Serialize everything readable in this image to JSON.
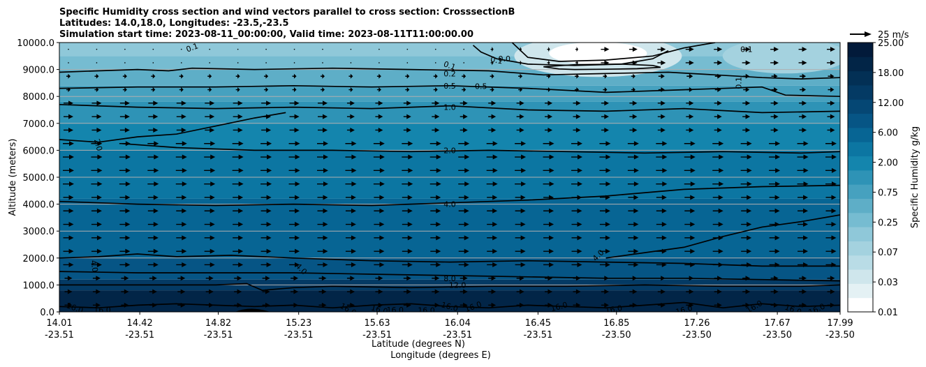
{
  "chart_data": {
    "type": "contour",
    "title_lines": [
      "Specific Humidity cross section and wind vectors parallel to cross section: CrosssectionB",
      "Latitudes: 14.0,18.0, Longitudes: -23.5,-23.5",
      "Simulation start time: 2023-08-11_00:00:00, Valid time: 2023-08-11T11:00:00.00"
    ],
    "ylabel": "Altitude (meters)",
    "xlabel_lines": [
      "Latitude (degrees N)",
      "Longitude (degrees E)"
    ],
    "ylim": [
      0,
      10000
    ],
    "yticks": [
      "0.0",
      "1000.0",
      "2000.0",
      "3000.0",
      "4000.0",
      "5000.0",
      "6000.0",
      "7000.0",
      "8000.0",
      "9000.0",
      "10000.0"
    ],
    "xticks": [
      {
        "lat": "14.01",
        "lon": "-23.51"
      },
      {
        "lat": "14.42",
        "lon": "-23.51"
      },
      {
        "lat": "14.82",
        "lon": "-23.51"
      },
      {
        "lat": "15.23",
        "lon": "-23.51"
      },
      {
        "lat": "15.63",
        "lon": "-23.51"
      },
      {
        "lat": "16.04",
        "lon": "-23.51"
      },
      {
        "lat": "16.45",
        "lon": "-23.51"
      },
      {
        "lat": "16.85",
        "lon": "-23.50"
      },
      {
        "lat": "17.26",
        "lon": "-23.50"
      },
      {
        "lat": "17.67",
        "lon": "-23.50"
      },
      {
        "lat": "17.99",
        "lon": "-23.50"
      }
    ],
    "colorbar": {
      "label": "Specific Humidity g/kg",
      "ticks": [
        "0.01",
        "0.03",
        "0.07",
        "0.25",
        "0.75",
        "2.00",
        "6.00",
        "12.00",
        "18.00",
        "25.00"
      ],
      "levels": [
        "0.01",
        "0.02",
        "0.03",
        "0.05",
        "0.07",
        "0.1",
        "0.25",
        "0.5",
        "0.75",
        "1.0",
        "2.00",
        "4.0",
        "6.00",
        "8.0",
        "12.00",
        "16.0",
        "18.00",
        "20.0",
        "25.00"
      ],
      "colors": [
        "#ffffff",
        "#e4f1f4",
        "#cfe6ec",
        "#b9dce6",
        "#a4d2df",
        "#8fc8d9",
        "#76bcd1",
        "#5eaec7",
        "#46a1bf",
        "#2e93b6",
        "#1485ad",
        "#0c76a2",
        "#076594",
        "#065585",
        "#054774",
        "#043a64",
        "#033055",
        "#022547",
        "#021a3a"
      ]
    },
    "wind_legend": "25 m/s",
    "contour_labels": [
      {
        "text": "0.1",
        "row": "top",
        "note": "upper-left edge"
      },
      {
        "text": "0.1",
        "row": "top"
      },
      {
        "text": "0.1",
        "row": "top"
      },
      {
        "text": "0.0",
        "row": "top"
      },
      {
        "text": "0.1",
        "row": "top-right"
      },
      {
        "text": "0.2",
        "row": "upper"
      },
      {
        "text": "0.5",
        "row": "upper"
      },
      {
        "text": "0.5",
        "row": "upper"
      },
      {
        "text": "0.1",
        "row": "right"
      },
      {
        "text": "1.0",
        "row": "upper-mid"
      },
      {
        "text": "2.0",
        "row": "mid"
      },
      {
        "text": "2.0",
        "row": "left"
      },
      {
        "text": "4.0",
        "row": "mid"
      },
      {
        "text": "4.0",
        "row": "lower"
      },
      {
        "text": "4.0",
        "row": "lower"
      },
      {
        "text": "4.0",
        "row": "lower"
      },
      {
        "text": "8.0",
        "row": "low"
      },
      {
        "text": "12.0",
        "row": "low"
      },
      {
        "text": "16.0",
        "row": "surface"
      },
      {
        "text": "16.0",
        "row": "surface"
      },
      {
        "text": "16.0",
        "row": "surface"
      },
      {
        "text": "16.0",
        "row": "surface"
      },
      {
        "text": "16.0",
        "row": "surface"
      },
      {
        "text": "16.0",
        "row": "surface"
      },
      {
        "text": "16.0",
        "row": "surface"
      },
      {
        "text": "16.0",
        "row": "surface"
      },
      {
        "text": "16.0",
        "row": "surface"
      },
      {
        "text": "16.0",
        "row": "surface"
      },
      {
        "text": "16.0",
        "row": "surface"
      },
      {
        "text": "16.0",
        "row": "surface"
      },
      {
        "text": "16.0",
        "row": "surface"
      },
      {
        "text": "16.0",
        "row": "surface"
      }
    ],
    "contours": [
      {
        "level": "0.0",
        "x": [
          0.53,
          0.54,
          0.56,
          0.6,
          0.66,
          0.72,
          0.76,
          0.78
        ],
        "y": [
          9900,
          9650,
          9400,
          9200,
          9150,
          9200,
          9400,
          9700
        ]
      },
      {
        "level": "0.0",
        "x": [
          0.62,
          0.64,
          0.66,
          0.7,
          0.74,
          0.77,
          0.76,
          0.72,
          0.66,
          0.62
        ],
        "y": [
          9100,
          9020,
          9000,
          9010,
          9030,
          9080,
          9150,
          9200,
          9180,
          9100
        ]
      },
      {
        "level": "0.1",
        "x": [
          0.58,
          0.6,
          0.64,
          0.7,
          0.76,
          0.8,
          0.83,
          0.84
        ],
        "y": [
          10000,
          9450,
          9300,
          9350,
          9500,
          9800,
          9950,
          10000
        ]
      },
      {
        "level": "0.2",
        "x": [
          0,
          0.05,
          0.1,
          0.14,
          0.17,
          0.25,
          0.35,
          0.45,
          0.55,
          0.62,
          0.7,
          0.78,
          0.84,
          0.9,
          0.95,
          1
        ],
        "y": [
          8900,
          8950,
          9000,
          8950,
          9050,
          9000,
          9050,
          9000,
          8950,
          8800,
          8850,
          8900,
          8800,
          8700,
          8650,
          8700
        ]
      },
      {
        "level": "0.5",
        "x": [
          0,
          0.1,
          0.2,
          0.3,
          0.4,
          0.5,
          0.6,
          0.7,
          0.8,
          0.9,
          0.93,
          1
        ],
        "y": [
          8300,
          8350,
          8350,
          8400,
          8350,
          8400,
          8300,
          8150,
          8250,
          8350,
          8050,
          8000
        ]
      },
      {
        "level": "1.0",
        "x": [
          0,
          0.1,
          0.2,
          0.3,
          0.4,
          0.5,
          0.6,
          0.7,
          0.8,
          0.9,
          1
        ],
        "y": [
          7700,
          7600,
          7550,
          7600,
          7550,
          7650,
          7500,
          7450,
          7550,
          7400,
          7450
        ]
      },
      {
        "level": "2.0",
        "x": [
          0,
          0.05,
          0.1,
          0.15,
          0.2,
          0.25,
          0.29
        ],
        "y": [
          6400,
          6300,
          6500,
          6600,
          6900,
          7200,
          7400
        ]
      },
      {
        "level": "2.0",
        "x": [
          0.08,
          0.15,
          0.25,
          0.35,
          0.45,
          0.55,
          0.65,
          0.75,
          0.85,
          0.95,
          1
        ],
        "y": [
          6250,
          6100,
          6000,
          6000,
          5950,
          6000,
          5950,
          5900,
          5950,
          5900,
          5950
        ]
      },
      {
        "level": "4.0",
        "x": [
          0,
          0.1,
          0.2,
          0.3,
          0.4,
          0.5,
          0.6,
          0.7,
          0.8,
          0.9,
          1
        ],
        "y": [
          4100,
          4000,
          3950,
          4000,
          3950,
          4050,
          4150,
          4300,
          4550,
          4650,
          4700
        ]
      },
      {
        "level": "4.0",
        "x": [
          0.7,
          0.8,
          0.85,
          0.9,
          0.95,
          1
        ],
        "y": [
          2000,
          2400,
          2800,
          3150,
          3350,
          3600
        ]
      },
      {
        "level": "4.0",
        "x": [
          0,
          0.05,
          0.1,
          0.15,
          0.22,
          0.3,
          0.4,
          0.5,
          0.6,
          0.7,
          0.8,
          0.9,
          1
        ],
        "y": [
          2000,
          2050,
          2150,
          2050,
          2100,
          2000,
          1900,
          1850,
          1900,
          1850,
          1800,
          1700,
          1700
        ]
      },
      {
        "level": "8.0",
        "x": [
          0,
          0.1,
          0.2,
          0.3,
          0.4,
          0.5,
          0.6,
          0.7,
          0.8,
          0.9,
          1
        ],
        "y": [
          1500,
          1450,
          1450,
          1450,
          1400,
          1350,
          1300,
          1250,
          1250,
          1200,
          1150
        ]
      },
      {
        "level": "12.0",
        "x": [
          0,
          0.1,
          0.2,
          0.24,
          0.26,
          0.3,
          0.35,
          0.45,
          0.55,
          0.65,
          0.75,
          0.85,
          0.95,
          1
        ],
        "y": [
          1000,
          1000,
          1000,
          1050,
          800,
          900,
          950,
          900,
          950,
          950,
          1000,
          950,
          950,
          1000
        ]
      },
      {
        "level": "16.0",
        "x": [
          0,
          0.05,
          0.1,
          0.15,
          0.2,
          0.25,
          0.3,
          0.35,
          0.4,
          0.45,
          0.5,
          0.55,
          0.6,
          0.65,
          0.7,
          0.75,
          0.8,
          0.85,
          0.9,
          0.95,
          1
        ],
        "y": [
          200,
          150,
          250,
          300,
          250,
          200,
          250,
          150,
          250,
          300,
          200,
          150,
          250,
          200,
          150,
          250,
          350,
          150,
          300,
          200,
          250
        ]
      }
    ]
  }
}
